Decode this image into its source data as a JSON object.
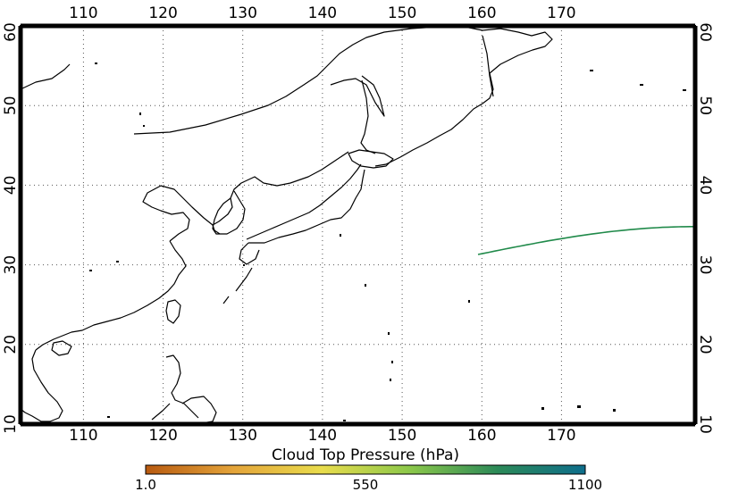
{
  "map": {
    "projection": "lon-lat",
    "lon_range": [
      105,
      178
    ],
    "lat_range": [
      10,
      60
    ],
    "grid": "dotted",
    "lon_ticks": [
      "110",
      "120",
      "130",
      "140",
      "150",
      "160",
      "170"
    ],
    "lat_ticks": [
      "10",
      "20",
      "30",
      "40",
      "50",
      "60"
    ],
    "track": {
      "lon_range": [
        154.5,
        178
      ],
      "lat_range": [
        31.3,
        34.8
      ],
      "color": "#208a4a"
    }
  },
  "colorbar": {
    "title": "Cloud Top Pressure (hPa)",
    "min_label": "1.0",
    "mid_label": "550",
    "max_label": "1100",
    "colors": [
      "#b85a10",
      "#e4a43a",
      "#e9dc4c",
      "#8cc84a",
      "#2c8a58",
      "#0e6e8c"
    ]
  }
}
